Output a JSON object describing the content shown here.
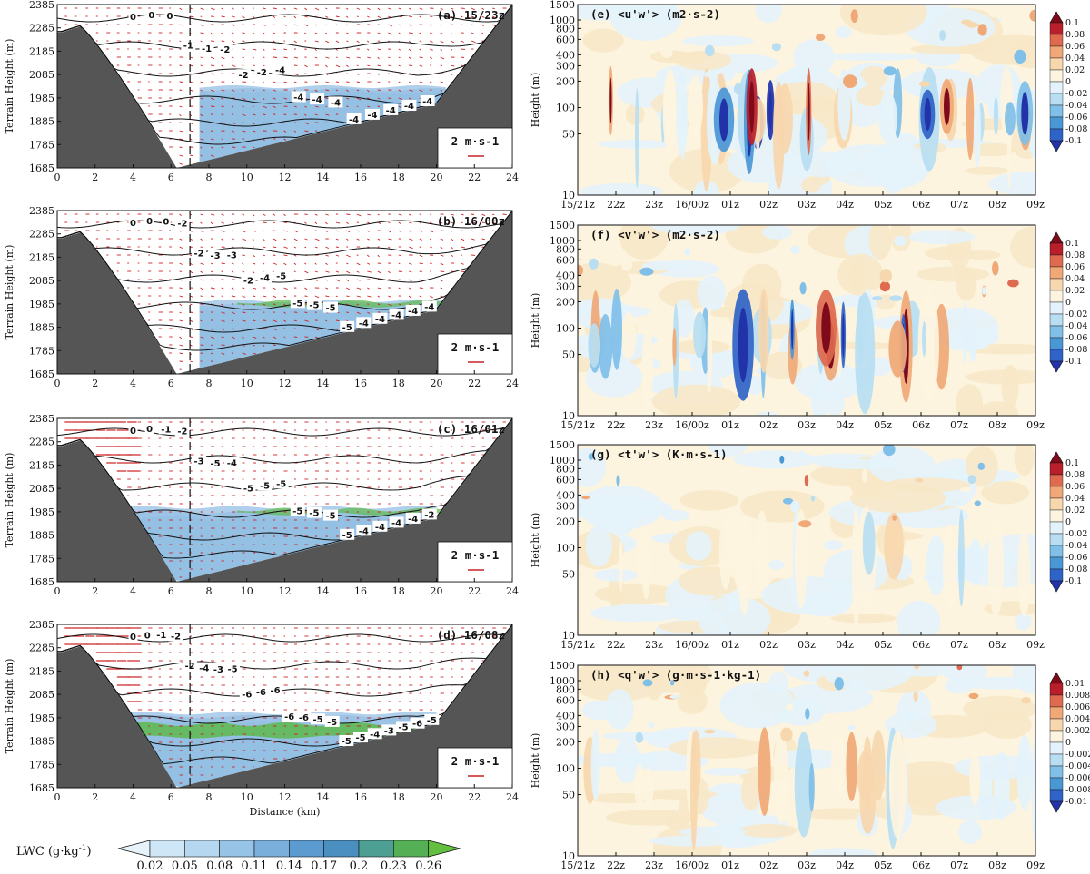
{
  "chart_data": [
    {
      "panel": "a",
      "type": "contour",
      "title": "(a) 15/23z",
      "ylabel": "Terrain Height (m)",
      "xlabel": "",
      "ylim": [
        1685,
        2385
      ],
      "xlim": [
        0,
        24
      ],
      "y_ticks": [
        "2385",
        "2285",
        "2185",
        "2085",
        "1985",
        "1885",
        "1785",
        "1685"
      ],
      "x_ticks": [
        "0",
        "2",
        "4",
        "6",
        "8",
        "10",
        "12",
        "14",
        "16",
        "18",
        "20",
        "22",
        "24"
      ],
      "contour_labels": [
        "0",
        "0",
        "0",
        "-1",
        "-1",
        "-2",
        "-2",
        "-2",
        "-4",
        "-4",
        "-4",
        "-4",
        "-4",
        "-4",
        "-4",
        "-4",
        "-4"
      ],
      "vector_ref": "2 m·s-1",
      "lwc_extent": [
        7.5,
        20.5
      ]
    },
    {
      "panel": "b",
      "type": "contour",
      "title": "(b) 16/00z",
      "ylabel": "Terrain Height (m)",
      "xlabel": "",
      "ylim": [
        1685,
        2385
      ],
      "xlim": [
        0,
        24
      ],
      "y_ticks": [
        "2385",
        "2285",
        "2185",
        "2085",
        "1985",
        "1885",
        "1785",
        "1685"
      ],
      "x_ticks": [
        "0",
        "2",
        "4",
        "6",
        "8",
        "10",
        "12",
        "14",
        "16",
        "18",
        "20",
        "22",
        "24"
      ],
      "contour_labels": [
        "0",
        "0",
        "0",
        "-2",
        "-2",
        "-3",
        "-3",
        "-2",
        "-4",
        "-5",
        "-5",
        "-5",
        "-5",
        "-5",
        "-4",
        "-4",
        "-4",
        "-4",
        "-4"
      ],
      "vector_ref": "2 m·s-1",
      "lwc_extent": [
        7.5,
        21.5
      ]
    },
    {
      "panel": "c",
      "type": "contour",
      "title": "(c) 16/01z",
      "ylabel": "Terrain Height (m)",
      "xlabel": "",
      "ylim": [
        1685,
        2385
      ],
      "xlim": [
        0,
        24
      ],
      "y_ticks": [
        "2385",
        "2285",
        "2185",
        "2085",
        "1985",
        "1885",
        "1785",
        "1685"
      ],
      "x_ticks": [
        "0",
        "2",
        "4",
        "6",
        "8",
        "10",
        "12",
        "14",
        "16",
        "18",
        "20",
        "22",
        "24"
      ],
      "contour_labels": [
        "0",
        "0",
        "-1",
        "-2",
        "-3",
        "-5",
        "-4",
        "-5",
        "-5",
        "-5",
        "-5",
        "-5",
        "-5",
        "-5",
        "-4",
        "-4",
        "-4",
        "-4",
        "-2"
      ],
      "vector_ref": "2 m·s-1",
      "lwc_extent": [
        3.5,
        20
      ]
    },
    {
      "panel": "d",
      "type": "contour",
      "title": "(d) 16/08z",
      "ylabel": "Terrain Height (m)",
      "xlabel": "Distance (km)",
      "ylim": [
        1685,
        2385
      ],
      "xlim": [
        0,
        24
      ],
      "y_ticks": [
        "2385",
        "2285",
        "2185",
        "2085",
        "1985",
        "1885",
        "1785",
        "1685"
      ],
      "x_ticks": [
        "0",
        "2",
        "4",
        "6",
        "8",
        "10",
        "12",
        "14",
        "16",
        "18",
        "20",
        "22",
        "24"
      ],
      "contour_labels": [
        "0",
        "0",
        "-1",
        "-2",
        "-2",
        "-4",
        "-3",
        "-5",
        "-6",
        "-6",
        "-6",
        "-6",
        "-6",
        "-5",
        "-5",
        "-5",
        "-5",
        "-4",
        "-3",
        "-5",
        "-6",
        "-5"
      ],
      "vector_ref": "2 m·s-1",
      "lwc_extent": [
        3.5,
        20
      ]
    },
    {
      "panel": "e",
      "type": "heatmap",
      "title": "(e) <u'w'> (m2·s-2)",
      "ylabel": "Height (m)",
      "yscale": "log",
      "ylim": [
        10,
        1500
      ],
      "y_ticks": [
        "1500",
        "1000",
        "800",
        "600",
        "400",
        "300",
        "200",
        "100",
        "50",
        "10"
      ],
      "x_ticks": [
        "15/21z",
        "22z",
        "23z",
        "16/00z",
        "01z",
        "02z",
        "03z",
        "04z",
        "05z",
        "06z",
        "07z",
        "08z",
        "09z"
      ],
      "colorbar": [
        "0.1",
        "0.08",
        "0.06",
        "0.04",
        "0.02",
        "0",
        "-0.02",
        "-0.04",
        "-0.06",
        "-0.08",
        "-0.1"
      ],
      "amplitude": 1.0,
      "seed": 11
    },
    {
      "panel": "f",
      "type": "heatmap",
      "title": "(f) <v'w'> (m2·s-2)",
      "ylabel": "Height (m)",
      "yscale": "log",
      "ylim": [
        10,
        1500
      ],
      "y_ticks": [
        "1500",
        "1000",
        "800",
        "600",
        "400",
        "300",
        "200",
        "100",
        "50",
        "10"
      ],
      "x_ticks": [
        "15/21z",
        "22z",
        "23z",
        "16/00z",
        "01z",
        "02z",
        "03z",
        "04z",
        "05z",
        "06z",
        "07z",
        "08z",
        "09z"
      ],
      "colorbar": [
        "0.1",
        "0.08",
        "0.06",
        "0.04",
        "0.02",
        "0",
        "-0.02",
        "-0.04",
        "-0.06",
        "-0.08",
        "-0.1"
      ],
      "amplitude": 0.85,
      "seed": 23
    },
    {
      "panel": "g",
      "type": "heatmap",
      "title": "(g) <t'w'> (K·m·s-1)",
      "ylabel": "Height (m)",
      "yscale": "log",
      "ylim": [
        10,
        1500
      ],
      "y_ticks": [
        "1500",
        "1000",
        "800",
        "600",
        "400",
        "300",
        "200",
        "100",
        "50",
        "10"
      ],
      "x_ticks": [
        "15/21z",
        "22z",
        "23z",
        "16/00z",
        "01z",
        "02z",
        "03z",
        "04z",
        "05z",
        "06z",
        "07z",
        "08z",
        "09z"
      ],
      "colorbar": [
        "0.1",
        "0.08",
        "0.06",
        "0.04",
        "0.02",
        "0",
        "-0.02",
        "-0.04",
        "-0.06",
        "-0.08",
        "-0.1"
      ],
      "amplitude": 0.35,
      "seed": 37
    },
    {
      "panel": "h",
      "type": "heatmap",
      "title": "(h) <q'w'> (g·m·s-1·kg-1)",
      "ylabel": "Height (m)",
      "yscale": "log",
      "ylim": [
        10,
        1500
      ],
      "y_ticks": [
        "1500",
        "1000",
        "800",
        "600",
        "400",
        "300",
        "200",
        "100",
        "50",
        "10"
      ],
      "x_ticks": [
        "15/21z",
        "22z",
        "23z",
        "16/00z",
        "01z",
        "02z",
        "03z",
        "04z",
        "05z",
        "06z",
        "07z",
        "08z",
        "09z"
      ],
      "colorbar": [
        "0.01",
        "0.008",
        "0.006",
        "0.004",
        "0.002",
        "0",
        "-0.002",
        "-0.004",
        "-0.006",
        "-0.008",
        "-0.01"
      ],
      "amplitude": 0.55,
      "seed": 53
    }
  ],
  "lwc_colorbar": {
    "label": "LWC (g·kg",
    "label_sup": "-1",
    "label_end": ")",
    "ticks": [
      "0.02",
      "0.05",
      "0.08",
      "0.11",
      "0.14",
      "0.17",
      "0.2",
      "0.23",
      "0.26"
    ],
    "colors": [
      "#e6f3fb",
      "#cfe6f6",
      "#b5d7ef",
      "#97c3e6",
      "#7aafdc",
      "#5c9bd0",
      "#4a8fbf",
      "#4c9f92",
      "#55b055",
      "#63bf3f"
    ]
  },
  "colors": {
    "terrain": "#555555",
    "vector": "#cc2222",
    "lwc_light": "#cde4f4",
    "lwc_mid": "#8cbbe2",
    "lwc_green": "#5db84c"
  }
}
